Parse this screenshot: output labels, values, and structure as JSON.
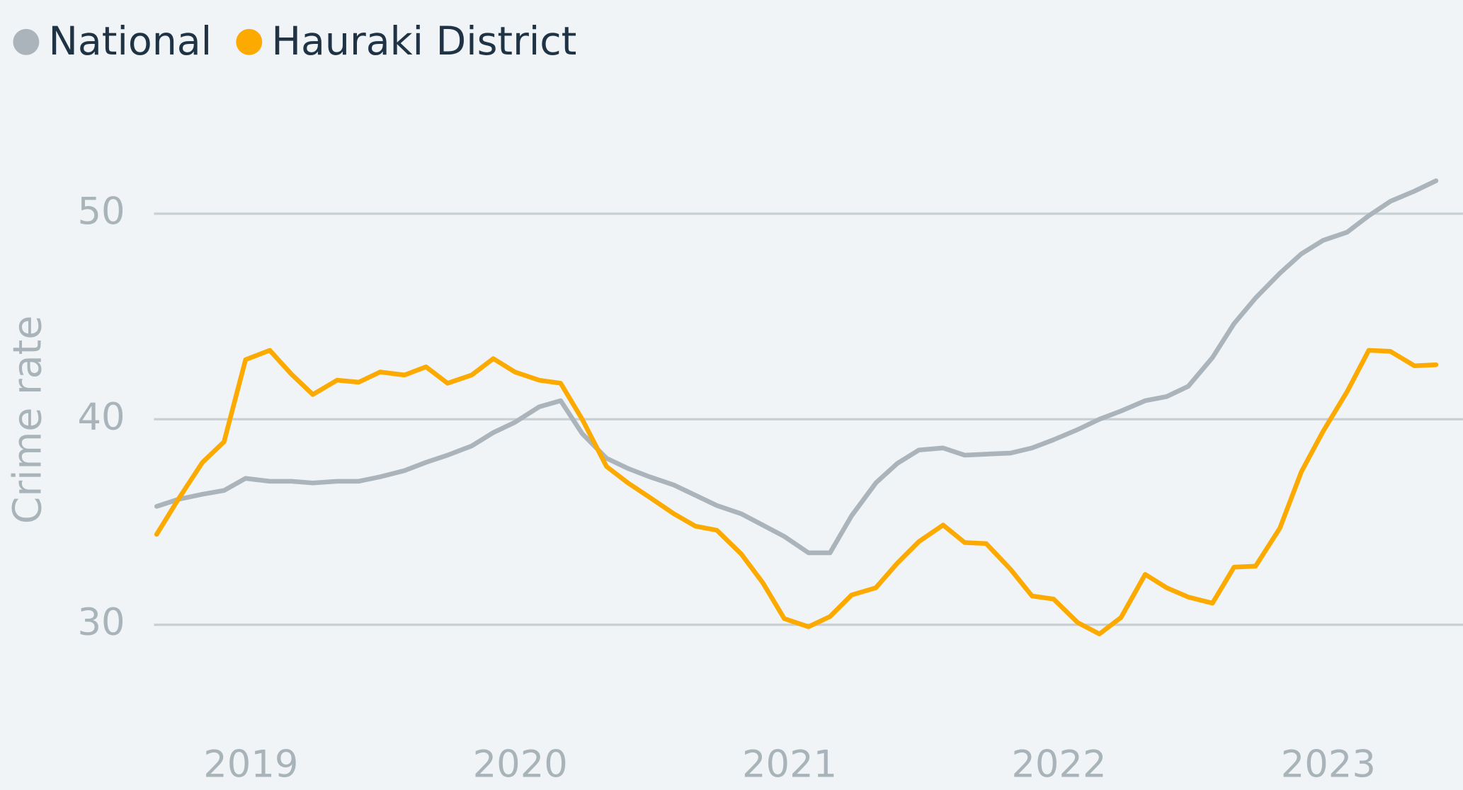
{
  "chart_data": {
    "type": "line",
    "y_label": "Crime rate",
    "x": [
      2018.65,
      2018.73,
      2018.82,
      2018.9,
      2018.98,
      2019.07,
      2019.15,
      2019.23,
      2019.32,
      2019.4,
      2019.48,
      2019.57,
      2019.65,
      2019.73,
      2019.82,
      2019.9,
      2019.98,
      2020.07,
      2020.15,
      2020.23,
      2020.32,
      2020.4,
      2020.48,
      2020.57,
      2020.65,
      2020.73,
      2020.82,
      2020.9,
      2020.98,
      2021.07,
      2021.15,
      2021.23,
      2021.32,
      2021.4,
      2021.48,
      2021.57,
      2021.65,
      2021.73,
      2021.82,
      2021.9,
      2021.98,
      2022.07,
      2022.15,
      2022.23,
      2022.32,
      2022.4,
      2022.48,
      2022.57,
      2022.65,
      2022.73,
      2022.82,
      2022.9,
      2022.98,
      2023.07,
      2023.15,
      2023.23,
      2023.32,
      2023.4
    ],
    "series": [
      {
        "name": "National",
        "color": "#aab4ba",
        "values": [
          35.76,
          36.1,
          36.35,
          36.53,
          37.12,
          36.98,
          36.98,
          36.9,
          36.98,
          36.98,
          37.2,
          37.5,
          37.9,
          38.25,
          38.7,
          39.35,
          39.85,
          40.6,
          40.9,
          39.3,
          38.1,
          37.6,
          37.2,
          36.8,
          36.3,
          35.8,
          35.4,
          34.85,
          34.3,
          33.5,
          33.5,
          35.3,
          36.9,
          37.85,
          38.5,
          38.6,
          38.25,
          38.3,
          38.35,
          38.6,
          39.0,
          39.5,
          40.0,
          40.4,
          40.9,
          41.1,
          41.6,
          43.0,
          44.65,
          45.9,
          47.1,
          48.05,
          48.7,
          49.1,
          49.9,
          50.6,
          51.1,
          51.6
        ]
      },
      {
        "name": "Hauraki District",
        "color": "#fdaa00",
        "values": [
          34.4,
          36.1,
          37.9,
          38.9,
          42.9,
          43.35,
          42.2,
          41.2,
          41.9,
          41.8,
          42.3,
          42.15,
          42.55,
          41.75,
          42.15,
          42.95,
          42.3,
          41.9,
          41.75,
          40.0,
          37.7,
          36.9,
          36.2,
          35.4,
          34.8,
          34.6,
          33.45,
          32.05,
          30.3,
          29.9,
          30.4,
          31.45,
          31.8,
          33.0,
          34.05,
          34.85,
          34.0,
          33.95,
          32.7,
          31.4,
          31.25,
          30.1,
          29.55,
          30.35,
          32.45,
          31.8,
          31.35,
          31.05,
          32.8,
          32.85,
          34.7,
          37.45,
          39.4,
          41.35,
          43.35,
          43.3,
          42.6,
          42.65
        ]
      }
    ],
    "xlim": [
      2018.64,
      2023.5
    ],
    "xticks": [
      2019,
      2020,
      2021,
      2022,
      2023
    ],
    "ylim": [
      25,
      53
    ],
    "yticks": [
      30,
      40,
      50
    ],
    "grid": true,
    "legend": "top-left"
  }
}
